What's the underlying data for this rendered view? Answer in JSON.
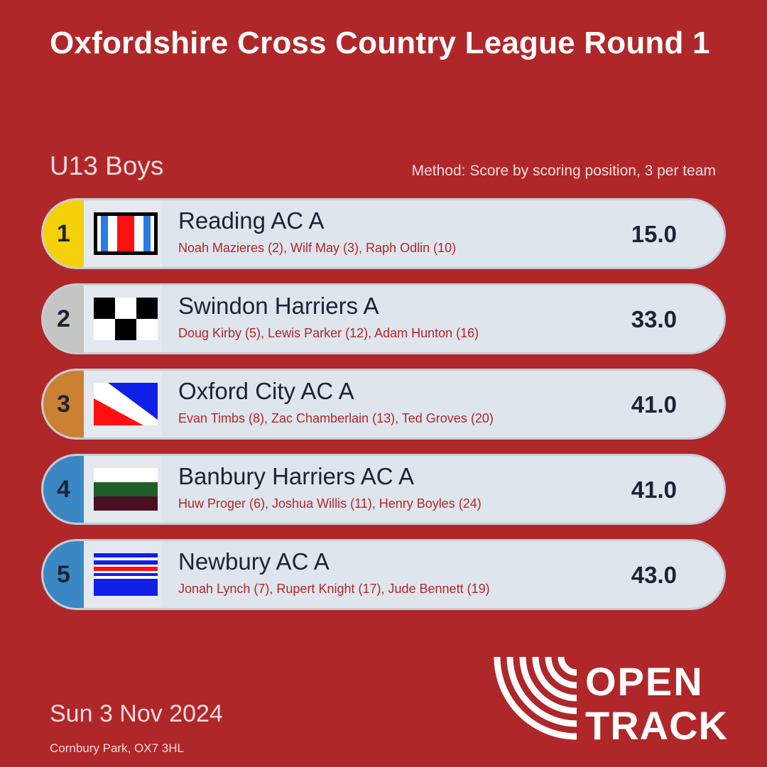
{
  "title": "Oxfordshire Cross Country League Round 1",
  "category": "U13 Boys",
  "method": "Method: Score by scoring position, 3 per team",
  "teams": [
    {
      "position": "1",
      "name": "Reading AC A",
      "athletes": "Noah Mazieres (2), Wilf May (3), Raph Odlin (10)",
      "score": "15.0",
      "flag": "reading-flag-icon"
    },
    {
      "position": "2",
      "name": "Swindon Harriers A",
      "athletes": "Doug Kirby (5), Lewis Parker (12), Adam Hunton (16)",
      "score": "33.0",
      "flag": "swindon-flag-icon"
    },
    {
      "position": "3",
      "name": "Oxford City AC A",
      "athletes": "Evan Timbs (8), Zac Chamberlain (13), Ted Groves (20)",
      "score": "41.0",
      "flag": "oxford-flag-icon"
    },
    {
      "position": "4",
      "name": "Banbury Harriers AC A",
      "athletes": "Huw Proger (6), Joshua Willis (11), Henry Boyles (24)",
      "score": "41.0",
      "flag": "banbury-flag-icon"
    },
    {
      "position": "5",
      "name": "Newbury AC A",
      "athletes": "Jonah Lynch (7), Rupert Knight (17), Jude Bennett (19)",
      "score": "43.0",
      "flag": "newbury-flag-icon"
    }
  ],
  "date": "Sun 3 Nov 2024",
  "venue": "Cornbury Park, OX7 3HL",
  "logo": {
    "line1": "OPEN",
    "line2": "TRACK"
  },
  "colors": {
    "background": "#b0272a",
    "gold": "#f5d10c",
    "silver": "#c5c5c5",
    "bronze": "#cc8032",
    "blue": "#3b87c4",
    "row": "#dfe5ec",
    "text_dark": "#1b2433"
  }
}
